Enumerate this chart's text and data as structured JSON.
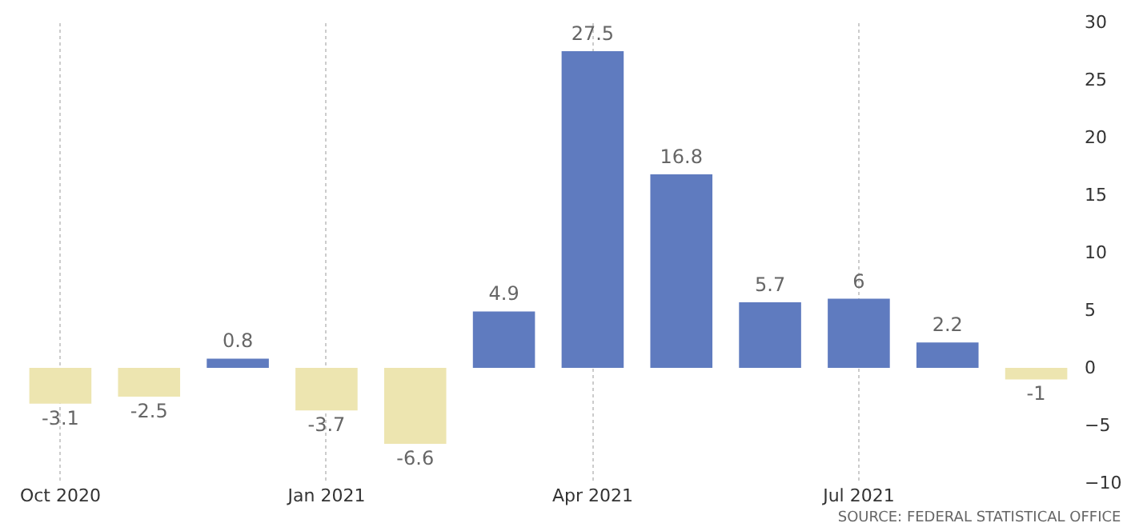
{
  "chart_data": {
    "type": "bar",
    "categories": [
      "Oct 2020",
      null,
      null,
      "Jan 2021",
      null,
      null,
      "Apr 2021",
      null,
      null,
      "Jul 2021",
      null,
      null
    ],
    "values": [
      -3.1,
      -2.5,
      0.8,
      -3.7,
      -6.6,
      4.9,
      27.5,
      16.8,
      5.7,
      6,
      2.2,
      -1
    ],
    "colors": [
      "#ede5b0",
      "#ede5b0",
      "#5f7bbf",
      "#ede5b0",
      "#ede5b0",
      "#5f7bbf",
      "#5f7bbf",
      "#5f7bbf",
      "#5f7bbf",
      "#5f7bbf",
      "#5f7bbf",
      "#ede5b0"
    ],
    "ylim": [
      -10,
      30
    ],
    "yticks": [
      -10,
      -5,
      0,
      5,
      10,
      15,
      20,
      25,
      30
    ],
    "grid": "x",
    "data_labels": true,
    "annotations": [
      "SOURCE: FEDERAL STATISTICAL OFFICE"
    ]
  }
}
